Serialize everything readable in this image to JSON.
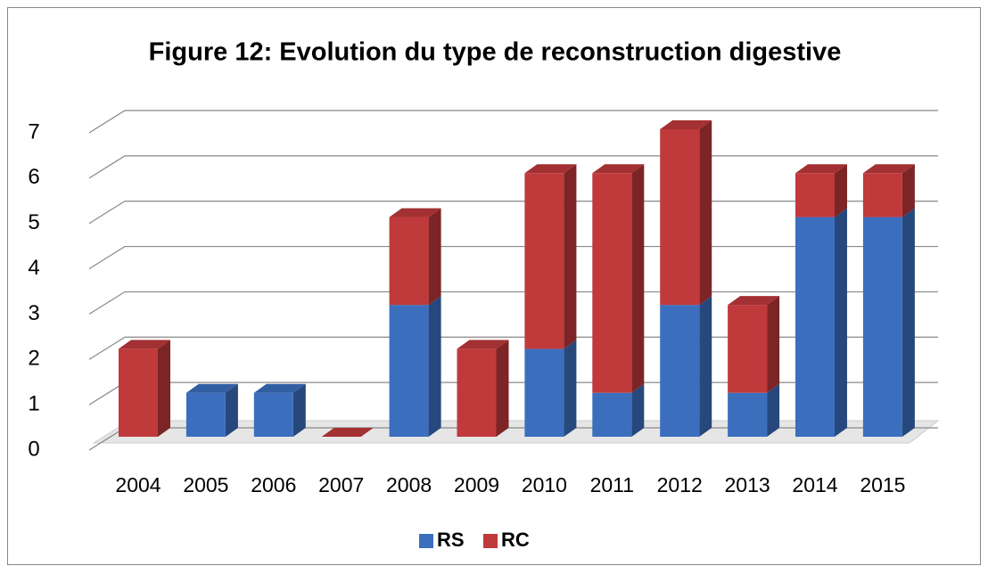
{
  "chart_data": {
    "type": "bar3d_stacked",
    "title": "Figure 12: Evolution du type de reconstruction digestive",
    "categories": [
      "2004",
      "2005",
      "2006",
      "2007",
      "2008",
      "2009",
      "2010",
      "2011",
      "2012",
      "2013",
      "2014",
      "2015"
    ],
    "series": [
      {
        "name": "RS",
        "color": "#3b6fbe",
        "values": [
          0,
          1,
          1,
          0,
          3,
          0,
          2,
          1,
          3,
          1,
          5,
          5
        ]
      },
      {
        "name": "RC",
        "color": "#c0393b",
        "values": [
          2,
          0,
          0,
          0,
          2,
          2,
          4,
          5,
          4,
          2,
          1,
          1
        ]
      }
    ],
    "ylim": [
      0,
      7
    ],
    "yticks": [
      0,
      1,
      2,
      3,
      4,
      5,
      6,
      7
    ],
    "grid": true,
    "legend": "bottom"
  }
}
